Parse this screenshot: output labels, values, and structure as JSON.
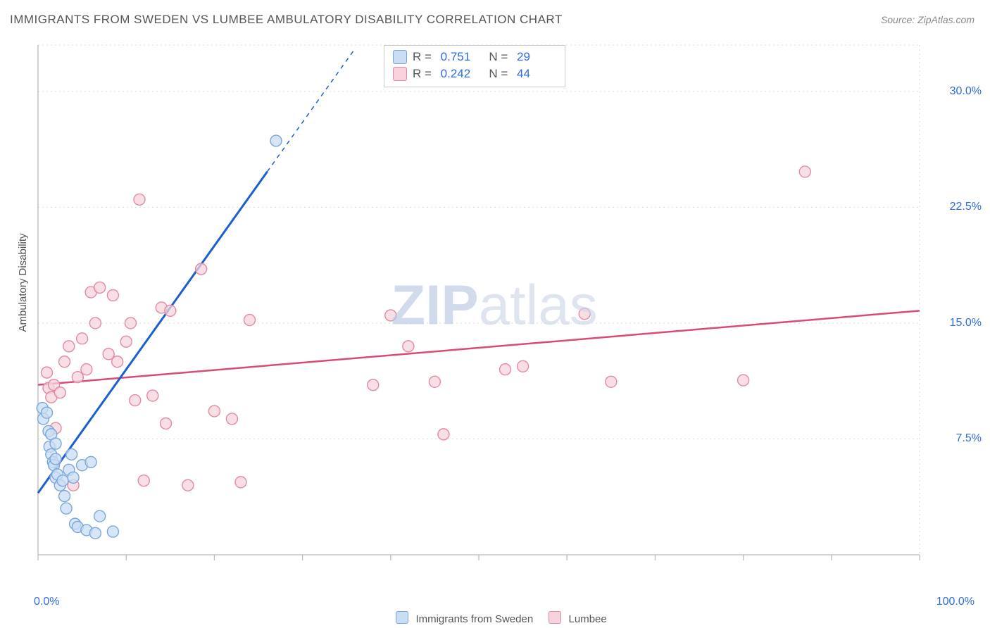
{
  "title": "IMMIGRANTS FROM SWEDEN VS LUMBEE AMBULATORY DISABILITY CORRELATION CHART",
  "source": "Source: ZipAtlas.com",
  "watermark_bold": "ZIP",
  "watermark_light": "atlas",
  "chart": {
    "type": "scatter",
    "xlim": [
      0,
      100
    ],
    "ylim": [
      0,
      33
    ],
    "x_axis_label_min": "0.0%",
    "x_axis_label_max": "100.0%",
    "y_ticks": [
      7.5,
      15.0,
      22.5,
      30.0
    ],
    "y_tick_labels": [
      "7.5%",
      "15.0%",
      "22.5%",
      "30.0%"
    ],
    "y_label": "Ambulatory Disability",
    "grid_color": "#dddddd",
    "grid_dash": "2,4",
    "axis_color": "#bbbbbb",
    "tick_color": "#bbbbbb",
    "background_color": "#ffffff",
    "label_color": "#2d6cdf",
    "text_fontsize": 15,
    "tick_positions_x": [
      0,
      10,
      20,
      30,
      40,
      50,
      60,
      70,
      80,
      90,
      100
    ],
    "series": [
      {
        "name": "Immigrants from Sweden",
        "color_fill": "#c9ddf4",
        "color_stroke": "#7aa7d9",
        "line_color": "#1b5fcf",
        "line_width": 3,
        "marker_r": 8,
        "R": "0.751",
        "N": "29",
        "trend": {
          "x1": 0,
          "y1": 4.0,
          "x2": 30,
          "y2": 28.0,
          "dash_from_x": 26
        },
        "points": [
          {
            "x": 0.5,
            "y": 9.5
          },
          {
            "x": 0.6,
            "y": 8.8
          },
          {
            "x": 1.0,
            "y": 9.2
          },
          {
            "x": 1.2,
            "y": 8.0
          },
          {
            "x": 1.3,
            "y": 7.0
          },
          {
            "x": 1.5,
            "y": 6.5
          },
          {
            "x": 1.7,
            "y": 6.0
          },
          {
            "x": 1.8,
            "y": 5.8
          },
          {
            "x": 2.0,
            "y": 5.0
          },
          {
            "x": 2.0,
            "y": 6.2
          },
          {
            "x": 2.2,
            "y": 5.2
          },
          {
            "x": 2.5,
            "y": 4.5
          },
          {
            "x": 2.8,
            "y": 4.8
          },
          {
            "x": 3.0,
            "y": 3.8
          },
          {
            "x": 3.2,
            "y": 3.0
          },
          {
            "x": 3.5,
            "y": 5.5
          },
          {
            "x": 3.8,
            "y": 6.5
          },
          {
            "x": 4.0,
            "y": 5.0
          },
          {
            "x": 4.2,
            "y": 2.0
          },
          {
            "x": 4.5,
            "y": 1.8
          },
          {
            "x": 5.0,
            "y": 5.8
          },
          {
            "x": 5.5,
            "y": 1.6
          },
          {
            "x": 6.0,
            "y": 6.0
          },
          {
            "x": 6.5,
            "y": 1.4
          },
          {
            "x": 7.0,
            "y": 2.5
          },
          {
            "x": 8.5,
            "y": 1.5
          },
          {
            "x": 1.5,
            "y": 7.8
          },
          {
            "x": 2.0,
            "y": 7.2
          },
          {
            "x": 27.0,
            "y": 26.8
          }
        ]
      },
      {
        "name": "Lumbee",
        "color_fill": "#f6d3dc",
        "color_stroke": "#e38aa2",
        "line_color": "#d94b73",
        "line_width": 2.5,
        "marker_r": 8,
        "R": "0.242",
        "N": "44",
        "trend": {
          "x1": 0,
          "y1": 11.0,
          "x2": 100,
          "y2": 15.8
        },
        "points": [
          {
            "x": 1.0,
            "y": 11.8
          },
          {
            "x": 1.2,
            "y": 10.8
          },
          {
            "x": 1.5,
            "y": 10.2
          },
          {
            "x": 1.8,
            "y": 11.0
          },
          {
            "x": 2.0,
            "y": 8.2
          },
          {
            "x": 2.5,
            "y": 10.5
          },
          {
            "x": 3.0,
            "y": 12.5
          },
          {
            "x": 3.5,
            "y": 13.5
          },
          {
            "x": 4.0,
            "y": 4.5
          },
          {
            "x": 4.5,
            "y": 11.5
          },
          {
            "x": 5.0,
            "y": 14.0
          },
          {
            "x": 5.5,
            "y": 12.0
          },
          {
            "x": 6.0,
            "y": 17.0
          },
          {
            "x": 6.5,
            "y": 15.0
          },
          {
            "x": 7.0,
            "y": 17.3
          },
          {
            "x": 8.0,
            "y": 13.0
          },
          {
            "x": 8.5,
            "y": 16.8
          },
          {
            "x": 9.0,
            "y": 12.5
          },
          {
            "x": 10.0,
            "y": 13.8
          },
          {
            "x": 10.5,
            "y": 15.0
          },
          {
            "x": 11.0,
            "y": 10.0
          },
          {
            "x": 11.5,
            "y": 23.0
          },
          {
            "x": 12.0,
            "y": 4.8
          },
          {
            "x": 13.0,
            "y": 10.3
          },
          {
            "x": 14.0,
            "y": 16.0
          },
          {
            "x": 14.5,
            "y": 8.5
          },
          {
            "x": 15.0,
            "y": 15.8
          },
          {
            "x": 17.0,
            "y": 4.5
          },
          {
            "x": 18.5,
            "y": 18.5
          },
          {
            "x": 20.0,
            "y": 9.3
          },
          {
            "x": 22.0,
            "y": 8.8
          },
          {
            "x": 23.0,
            "y": 4.7
          },
          {
            "x": 24.0,
            "y": 15.2
          },
          {
            "x": 38.0,
            "y": 11.0
          },
          {
            "x": 40.0,
            "y": 15.5
          },
          {
            "x": 42.0,
            "y": 13.5
          },
          {
            "x": 45.0,
            "y": 11.2
          },
          {
            "x": 46.0,
            "y": 7.8
          },
          {
            "x": 53.0,
            "y": 12.0
          },
          {
            "x": 55.0,
            "y": 12.2
          },
          {
            "x": 62.0,
            "y": 15.6
          },
          {
            "x": 65.0,
            "y": 11.2
          },
          {
            "x": 80.0,
            "y": 11.3
          },
          {
            "x": 87.0,
            "y": 24.8
          }
        ]
      }
    ],
    "legend": {
      "items": [
        {
          "label": "Immigrants from Sweden",
          "fill": "#c9ddf4",
          "stroke": "#7aa7d9"
        },
        {
          "label": "Lumbee",
          "fill": "#f6d3dc",
          "stroke": "#e38aa2"
        }
      ]
    }
  }
}
